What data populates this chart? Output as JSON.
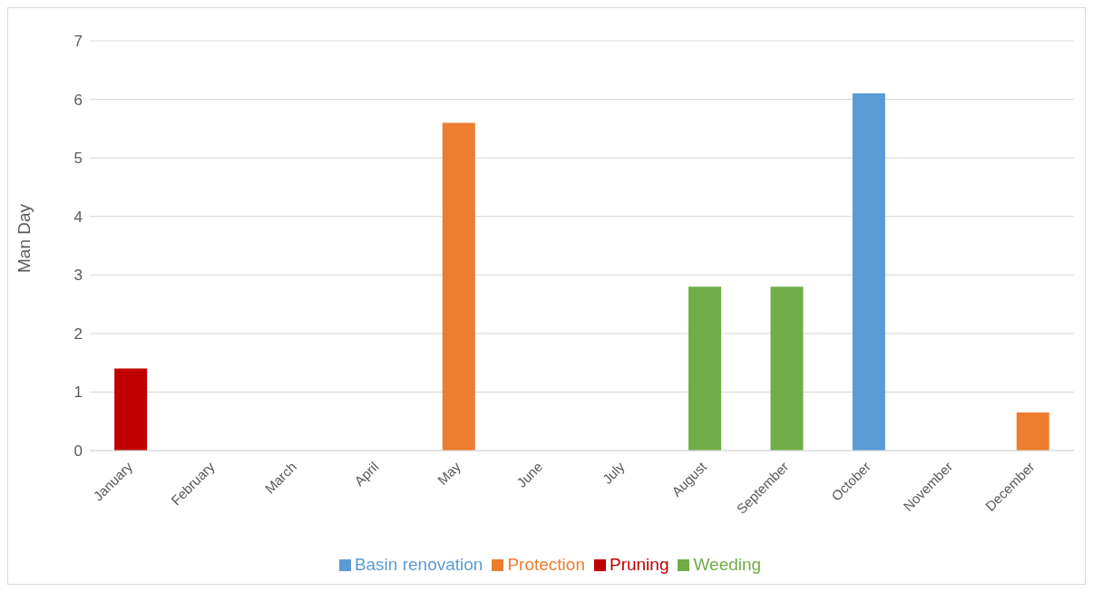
{
  "chart_data": {
    "type": "bar",
    "ylabel": "Man Day",
    "stacked": true,
    "categories": [
      "January",
      "February",
      "March",
      "April",
      "May",
      "June",
      "July",
      "August",
      "September",
      "October",
      "November",
      "December"
    ],
    "series": [
      {
        "name": "Basin renovation",
        "color": "#5b9bd5",
        "values": [
          null,
          null,
          null,
          null,
          null,
          null,
          null,
          null,
          null,
          6.1,
          null,
          null
        ]
      },
      {
        "name": "Weeding",
        "color": "#70ad47",
        "values": [
          null,
          null,
          null,
          null,
          null,
          null,
          null,
          2.8,
          2.8,
          null,
          null,
          null
        ]
      },
      {
        "name": "Pruning",
        "color": "#c00000",
        "values": [
          1.4,
          null,
          null,
          null,
          null,
          null,
          null,
          null,
          null,
          null,
          null,
          null
        ]
      },
      {
        "name": "Protection",
        "color": "#ed7d31",
        "values": [
          null,
          null,
          null,
          null,
          5.6,
          null,
          null,
          null,
          null,
          null,
          null,
          0.65
        ]
      }
    ],
    "ylim": [
      0,
      7
    ],
    "yticks": [
      0,
      1,
      2,
      3,
      4,
      5,
      6,
      7
    ],
    "grid": "y",
    "legend": "bottom"
  }
}
